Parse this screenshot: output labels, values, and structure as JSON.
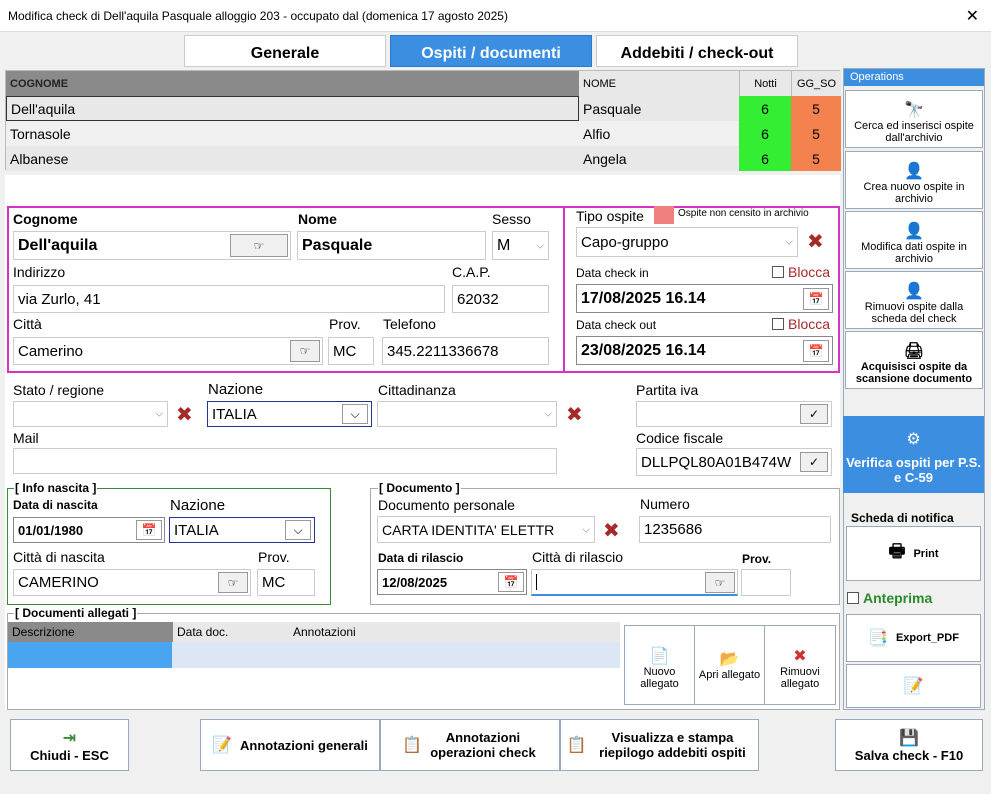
{
  "window": {
    "title": "Modifica check di Dell'aquila Pasquale  alloggio 203 - occupato dal  (domenica  17 agosto  2025)",
    "close": "✕"
  },
  "tabs": [
    "Generale",
    "Ospiti / documenti",
    "Addebiti / check-out"
  ],
  "guests_grid": {
    "headers": {
      "cognome": "COGNOME",
      "nome": "NOME",
      "notti": "Notti",
      "gg_so": "GG_SO"
    },
    "rows": [
      {
        "cognome": "Dell'aquila",
        "nome": "Pasquale",
        "notti": "6",
        "gg_so": "5"
      },
      {
        "cognome": "Tornasole",
        "nome": "Alfio",
        "notti": "6",
        "gg_so": "5"
      },
      {
        "cognome": "Albanese",
        "nome": "Angela",
        "notti": "6",
        "gg_so": "5"
      }
    ]
  },
  "guest": {
    "cognome_label": "Cognome",
    "cognome": "Dell'aquila",
    "nome_label": "Nome",
    "nome": "Pasquale",
    "sesso_label": "Sesso",
    "sesso": "M",
    "indirizzo_label": "Indirizzo",
    "indirizzo": "via Zurlo, 41",
    "cap_label": "C.A.P.",
    "cap": "62032",
    "citta_label": "Città",
    "citta": "Camerino",
    "prov_label": "Prov.",
    "prov": "MC",
    "telefono_label": "Telefono",
    "telefono": "345.2211336678",
    "tipo_label": "Tipo ospite",
    "tipo": "Capo-gruppo",
    "non_censito": "Ospite non censito in archivio",
    "checkin_label": "Data check in",
    "checkin": "17/08/2025 16.14",
    "checkout_label": "Data check out",
    "checkout": "23/08/2025 16.14",
    "blocca": "Blocca",
    "stato_label": "Stato / regione",
    "nazione_label": "Nazione",
    "nazione": "ITALIA",
    "cittadinanza_label": "Cittadinanza",
    "piva_label": "Partita iva",
    "mail_label": "Mail",
    "cf_label": "Codice fiscale",
    "cf": "DLLPQL80A01B474W"
  },
  "nascita": {
    "title": "[ Info nascita ]",
    "data_label": "Data di nascita",
    "data": "01/01/1980",
    "nazione_label": "Nazione",
    "nazione": "ITALIA",
    "citta_label": "Città di nascita",
    "citta": "CAMERINO",
    "prov_label": "Prov.",
    "prov": "MC"
  },
  "documento": {
    "title": "[ Documento ]",
    "tipo_label": "Documento personale",
    "tipo": "CARTA IDENTITA' ELETTR",
    "numero_label": "Numero",
    "numero": "1235686",
    "rilascio_label": "Data di rilascio",
    "rilascio": "12/08/2025",
    "citta_label": "Città di rilascio",
    "prov_label": "Prov."
  },
  "allegati": {
    "title": "[ Documenti allegati ]",
    "headers": [
      "Descrizione",
      "Data doc.",
      "Annotazioni"
    ],
    "nuovo": "Nuovo allegato",
    "apri": "Apri allegato",
    "rimuovi": "Rimuovi allegato"
  },
  "operations": {
    "title": "Operations",
    "cerca": "Cerca ed inserisci ospite dall'archivio",
    "crea": "Crea nuovo ospite in archivio",
    "modifica": "Modifica dati ospite in archivio",
    "rimuovi": "Rimuovi ospite dalla scheda del check",
    "acquisisci": "Acquisisci ospite da scansione documento",
    "verifica": "Verifica ospiti per P.S. e C-59",
    "scheda": "Scheda di notifica",
    "print": "Print",
    "anteprima": "Anteprima",
    "export": "Export_PDF"
  },
  "bottom": {
    "chiudi": "Chiudi - ESC",
    "annot_gen": "Annotazioni generali",
    "annot_op": "Annotazioni operazioni check",
    "visualizza": "Visualizza e stampa riepilogo addebiti ospiti",
    "salva": "Salva check - F10"
  },
  "colors": {
    "accent": "#3c8fe0",
    "green": "#33ee33",
    "orange": "#f4824e",
    "magenta": "#d633c6",
    "green_border": "#3a8a3a"
  }
}
